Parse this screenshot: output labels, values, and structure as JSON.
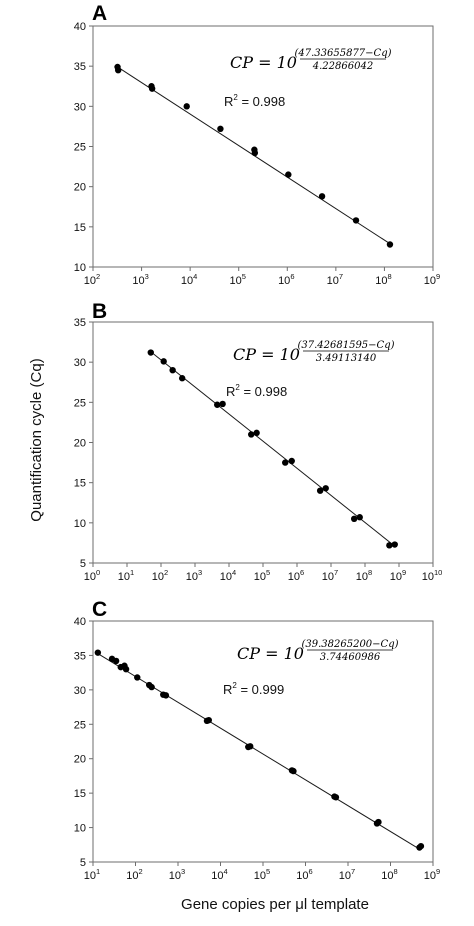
{
  "figure": {
    "y_axis_label": "Quantification cycle (Cq)",
    "x_axis_label": "Gene copies per μl template"
  },
  "chart_data": [
    {
      "type": "scatter",
      "panel": "A",
      "x_scale": "log10",
      "xlim": [
        100,
        1000000000
      ],
      "ylim": [
        10,
        40
      ],
      "x_ticks_exp": [
        2,
        3,
        4,
        5,
        6,
        7,
        8,
        9
      ],
      "y_ticks": [
        10,
        15,
        20,
        25,
        30,
        35,
        40
      ],
      "equation": {
        "lhs": "CP = 10",
        "numerator": "(47.33655877−Cq)",
        "denominator": "4.22866042"
      },
      "r2_label": "R",
      "r2_value": " = 0.998",
      "fit": {
        "x": [
          320,
          130000000
        ],
        "y": [
          34.9,
          12.9
        ]
      },
      "points": {
        "x": [
          320,
          330,
          1600,
          1650,
          8500,
          42000,
          210000,
          215000,
          1050000,
          5200000,
          26000000,
          130000000
        ],
        "y": [
          34.9,
          34.5,
          32.5,
          32.2,
          30.0,
          27.2,
          24.6,
          24.2,
          21.5,
          18.8,
          15.8,
          12.8
        ]
      }
    },
    {
      "type": "scatter",
      "panel": "B",
      "x_scale": "log10",
      "xlim": [
        1,
        10000000000
      ],
      "ylim": [
        5,
        35
      ],
      "x_ticks_exp": [
        0,
        1,
        2,
        3,
        4,
        5,
        6,
        7,
        8,
        9,
        10
      ],
      "y_ticks": [
        5,
        10,
        15,
        20,
        25,
        30,
        35
      ],
      "equation": {
        "lhs": "CP = 10",
        "numerator": "(37.42681595−Cq)",
        "denominator": "3.49113140"
      },
      "r2_label": "R",
      "r2_value": " = 0.998",
      "fit": {
        "x": [
          50,
          800000000
        ],
        "y": [
          31.3,
          7.0
        ]
      },
      "points": {
        "x": [
          50,
          120,
          220,
          420,
          4500,
          6500,
          45000,
          65000,
          450000,
          700000,
          4800000,
          7000000,
          48000000,
          70000000,
          520000000,
          750000000
        ],
        "y": [
          31.2,
          30.1,
          29.0,
          28.0,
          24.7,
          24.8,
          21.0,
          21.2,
          17.5,
          17.7,
          14.0,
          14.3,
          10.5,
          10.7,
          7.2,
          7.3
        ]
      }
    },
    {
      "type": "scatter",
      "panel": "C",
      "x_scale": "log10",
      "xlim": [
        10,
        1000000000
      ],
      "ylim": [
        5,
        40
      ],
      "x_ticks_exp": [
        1,
        2,
        3,
        4,
        5,
        6,
        7,
        8,
        9
      ],
      "y_ticks": [
        5,
        10,
        15,
        20,
        25,
        30,
        35,
        40
      ],
      "equation": {
        "lhs": "CP = 10",
        "numerator": "(39.38265200−Cq)",
        "denominator": "3.74460986"
      },
      "r2_label": "R",
      "r2_value": " = 0.999",
      "fit": {
        "x": [
          12,
          500000000
        ],
        "y": [
          35.4,
          6.8
        ]
      },
      "points": {
        "x": [
          13,
          28,
          35,
          45,
          55,
          60,
          110,
          210,
          240,
          450,
          520,
          4800,
          5300,
          45000,
          50000,
          480000,
          520000,
          4800000,
          5200000,
          48000000,
          52000000,
          480000000,
          520000000
        ],
        "y": [
          35.4,
          34.5,
          34.2,
          33.3,
          33.5,
          33.0,
          31.8,
          30.7,
          30.4,
          29.3,
          29.2,
          25.5,
          25.6,
          21.7,
          21.8,
          18.3,
          18.2,
          14.5,
          14.4,
          10.6,
          10.8,
          7.1,
          7.3
        ]
      }
    }
  ]
}
